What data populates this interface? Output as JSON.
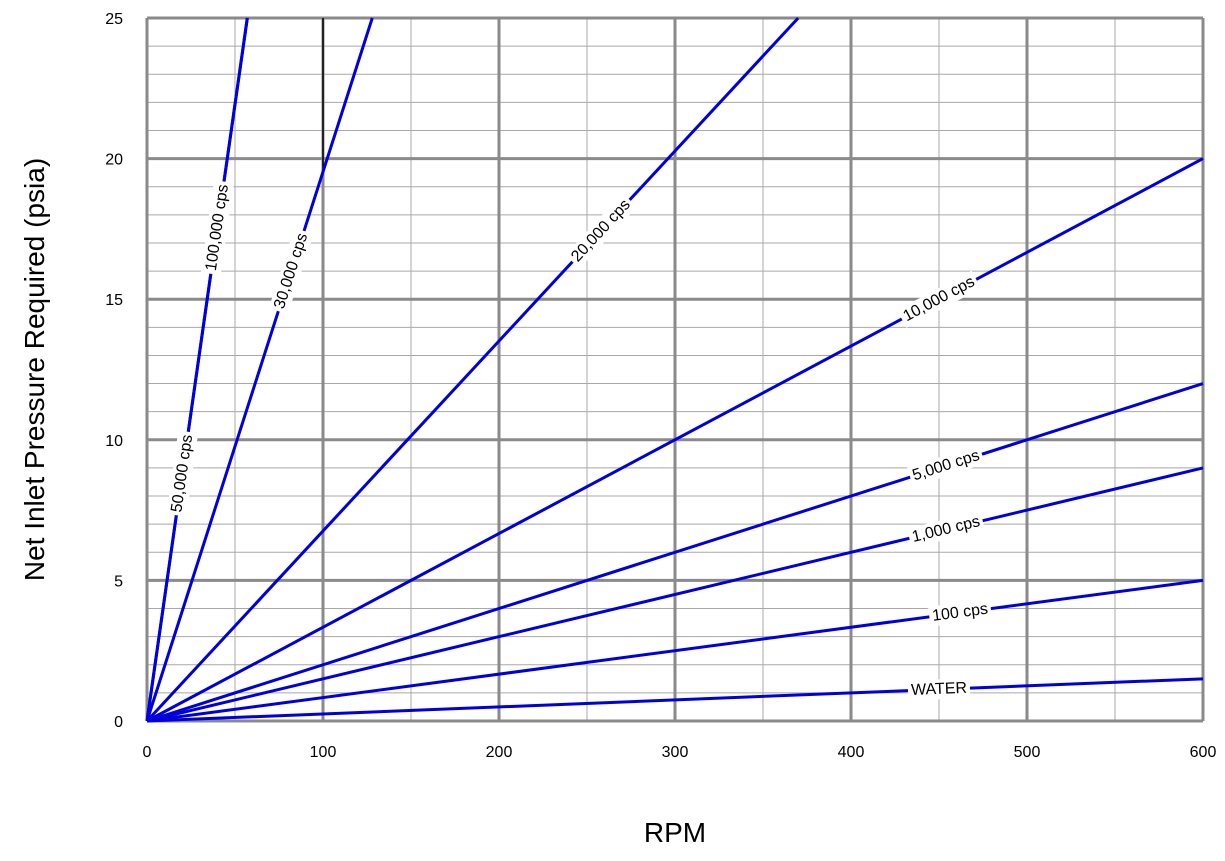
{
  "chart_data": {
    "type": "line",
    "xlabel": "RPM",
    "ylabel": "Net Inlet Pressure Required (psia)",
    "xlim": [
      0,
      600
    ],
    "ylim": [
      0,
      25
    ],
    "x_ticks": [
      "0",
      "100",
      "200",
      "300",
      "400",
      "500",
      "600"
    ],
    "y_ticks": [
      "0",
      "5",
      "10",
      "15",
      "20",
      "25"
    ],
    "grid": true,
    "line_color": "#0000dd",
    "series": [
      {
        "name": "WATER",
        "x": [
          0,
          600
        ],
        "y": [
          0,
          1.5
        ],
        "label_at": 450
      },
      {
        "name": "100 cps",
        "x": [
          0,
          600
        ],
        "y": [
          0,
          5
        ],
        "label_at": 462
      },
      {
        "name": "1,000 cps",
        "x": [
          0,
          600
        ],
        "y": [
          0,
          9
        ],
        "label_at": 454
      },
      {
        "name": "5,000 cps",
        "x": [
          0,
          600
        ],
        "y": [
          0,
          12
        ],
        "label_at": 454
      },
      {
        "name": "10,000 cps",
        "x": [
          0,
          600
        ],
        "y": [
          0,
          20
        ],
        "label_at": 450
      },
      {
        "name": "20,000 cps",
        "x": [
          0,
          370
        ],
        "y": [
          0,
          25
        ],
        "label_at": 258
      },
      {
        "name": "30,000 cps",
        "x": [
          0,
          128
        ],
        "y": [
          0,
          25
        ],
        "label_at": 160
      },
      {
        "name": "50,000 cps",
        "x": [
          0,
          57
        ],
        "y": [
          0,
          25
        ],
        "label_at": 88
      },
      {
        "name": "100,000 cps",
        "x": [
          0,
          57
        ],
        "y": [
          0,
          25
        ],
        "label_at": 40
      }
    ]
  }
}
